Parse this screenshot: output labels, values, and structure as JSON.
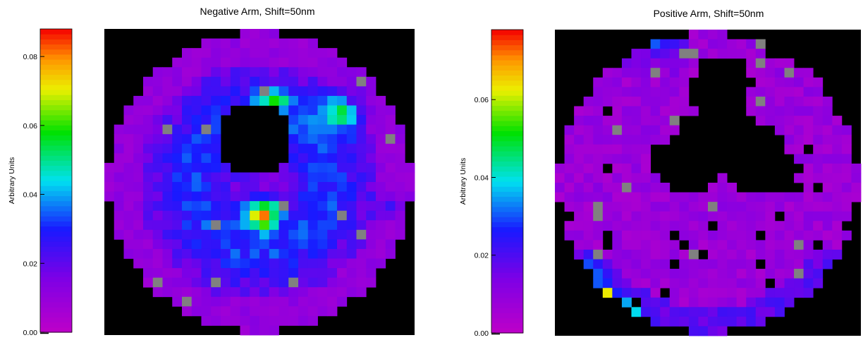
{
  "chart_data": [
    {
      "type": "heatmap",
      "title": "Negative Arm, Shift=50nm",
      "colorbar": {
        "label": "Arbitrary Units",
        "range": [
          0.0,
          0.088
        ],
        "ticks": [
          0.0,
          0.02,
          0.04,
          0.06,
          0.08
        ],
        "tick_labels": [
          "0.00",
          "0.02",
          "0.04",
          "0.06",
          "0.08"
        ],
        "colormap": "rainbow (magenta-violet-blue-cyan-green-yellow-red)"
      },
      "grid": {
        "cols": 32,
        "rows": 32,
        "background_color": "#000000",
        "missing_color": "#808080",
        "description_values": {
          "center_hole": {
            "col_center": 15,
            "row_center": 11,
            "radius": 3.6
          },
          "hotspot": {
            "col": 16,
            "row": 19,
            "value": 0.086
          }
        }
      }
    },
    {
      "type": "heatmap",
      "title": "Positive Arm, Shift=50nm",
      "colorbar": {
        "label": "Arbitrary Units",
        "range": [
          0.0,
          0.078
        ],
        "ticks": [
          0.0,
          0.02,
          0.04,
          0.06
        ],
        "tick_labels": [
          "0.00",
          "0.02",
          "0.04",
          "0.06"
        ],
        "colormap": "rainbow (magenta-violet-blue-cyan-green-yellow-red)"
      },
      "grid": {
        "cols": 32,
        "rows": 32,
        "background_color": "#000000",
        "missing_color": "#808080",
        "description_values": {
          "hotspot": {
            "col": 4,
            "row": 27,
            "value": 0.076
          }
        }
      }
    }
  ]
}
